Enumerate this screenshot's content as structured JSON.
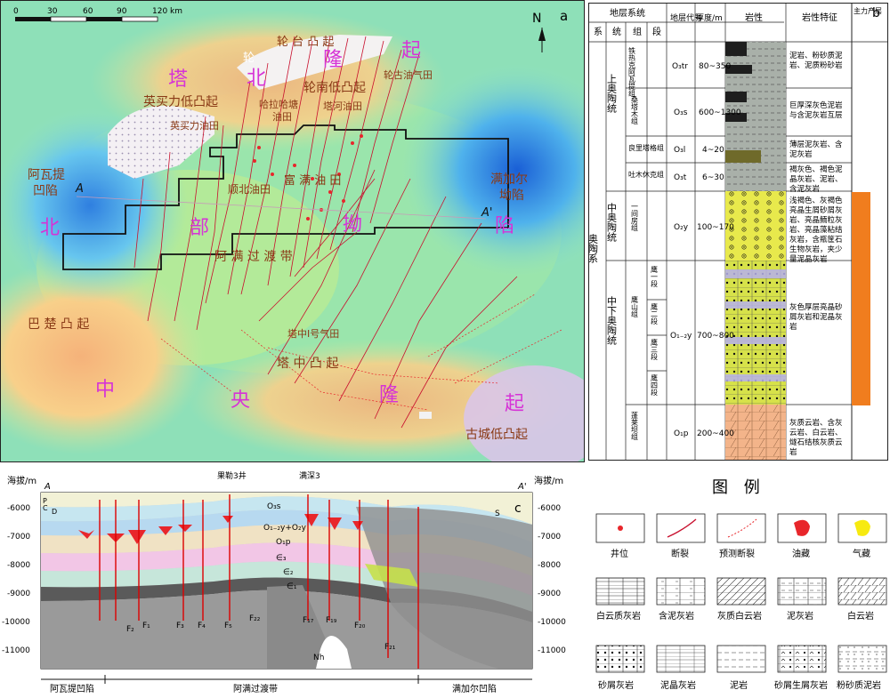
{
  "map": {
    "panel_label": "a",
    "north": "N",
    "scale": {
      "ticks": [
        "0",
        "30",
        "60",
        "90",
        "120 km"
      ]
    },
    "labels": {
      "lunnan_uplift_top": "轮 台 凸 起",
      "tabei_big": [
        "塔",
        "北",
        "隆",
        "起"
      ],
      "tabei_extra": "轮",
      "lunnan_low": "轮南低凸起",
      "lungu_gas": "轮古油气田",
      "yingmaili_low": "英买力低凸起",
      "yingmaili_field": "英买力油田",
      "halahatang": "哈拉哈塘",
      "halahatang2": "油田",
      "tahe": "塔河油田",
      "awati": "阿瓦提",
      "awati2": "凹陷",
      "manjiaer": "满加尔",
      "manjiaer2": "坳陷",
      "shunbei": "顺北油田",
      "fuman": "富 满 油 田",
      "beibu_big": [
        "北",
        "部",
        "拗",
        "陷"
      ],
      "aman": "阿 满 过 渡 带",
      "tazhong1": "塔中Ⅰ号气田",
      "tazhong_low": "塔 中 凸 起",
      "bachu": "巴 楚 凸 起",
      "central_big": [
        "中",
        "央",
        "隆",
        "起"
      ],
      "gucheng": "古城低凸起",
      "A": "A",
      "A_prime": "A'"
    }
  },
  "strat": {
    "panel_label": "b",
    "headers": {
      "system_group": "地层系统",
      "xi": "系",
      "tong": "统",
      "zu": "组",
      "duan": "段",
      "code": "地层代号",
      "thickness": "厚度/m",
      "lithology": "岩性",
      "features": "岩性特征",
      "main": "主力产层"
    },
    "system": "奥陶系",
    "series": [
      {
        "name": "上奥陶统"
      },
      {
        "name": "中奥陶统"
      },
      {
        "name": "中下奥陶统"
      }
    ],
    "rows": [
      {
        "zu": "铁热克阿瓦提组",
        "code": "O₃tr",
        "thick": "80~350",
        "feat": "泥岩、粉砂质泥岩、泥质粉砂岩"
      },
      {
        "zu": "桑塔木组",
        "code": "O₃s",
        "thick": "600~1300",
        "feat": "巨厚深灰色泥岩与含泥灰岩互层"
      },
      {
        "zu": "良里塔格组",
        "code": "O₃l",
        "thick": "4~20",
        "feat": "薄层泥灰岩、含泥灰岩"
      },
      {
        "zu": "吐木休克组",
        "code": "O₃t",
        "thick": "6~30",
        "feat": "褐灰色、褐色泥晶灰岩、泥岩、含泥灰岩"
      },
      {
        "zu": "一间房组",
        "code": "O₂y",
        "thick": "100~170",
        "feat": "浅褐色、灰褐色亮晶生屑砂屑灰岩、亮晶鲕粒灰岩、亮晶藻粘结灰岩，含瓶筐石生物灰岩，夹少量泥晶灰岩"
      },
      {
        "zu": "鹰山组",
        "code": "O₁₋₂y",
        "thick": "700~800",
        "feat": "灰色厚层亮晶砂屑灰岩和泥晶灰岩",
        "duan": [
          "鹰一段",
          "鹰二段",
          "鹰三段",
          "鹰四段"
        ]
      },
      {
        "zu": "蓬莱坝组",
        "code": "O₁p",
        "thick": "200~400",
        "feat": "灰质云岩、含灰云岩、白云岩、燧石结核灰质云岩"
      }
    ]
  },
  "section": {
    "panel_label": "c",
    "y_label_left": "海拔/m",
    "y_label_right": "海拔/m",
    "A": "A",
    "A_prime": "A'",
    "yticks": [
      "-6000",
      "-7000",
      "-8000",
      "-9000",
      "-10000",
      "-11000"
    ],
    "wells": [
      "果勒3井",
      "满深3"
    ],
    "units": [
      "O₃s",
      "O₁₋₂y+O₂y",
      "O₁p",
      "∈₃",
      "∈₂",
      "∈₁",
      "Nh",
      "S",
      "P",
      "C",
      "D"
    ],
    "faults": [
      "F₂",
      "F₁",
      "F₃",
      "F₄",
      "F₅",
      "F₂₂",
      "F₁₇",
      "F₁₉",
      "F₂₀",
      "F₂₁"
    ],
    "zones": [
      "阿瓦提凹陷",
      "阿满过渡带",
      "满加尔凹陷"
    ]
  },
  "legend": {
    "title": "图 例",
    "items": [
      "井位",
      "断裂",
      "预测断裂",
      "油藏",
      "气藏",
      "白云质灰岩",
      "含泥灰岩",
      "灰质白云岩",
      "泥灰岩",
      "白云岩",
      "砂屑灰岩",
      "泥晶灰岩",
      "泥岩",
      "砂屑生屑灰岩",
      "粉砂质泥岩"
    ]
  },
  "colors": {
    "oil": "#e8262b",
    "gas": "#f7ea10",
    "fault": "#c8102e",
    "main_layer": "#f07d1e",
    "upper_text": "#d633d6",
    "label_text": "#8a3a16"
  }
}
